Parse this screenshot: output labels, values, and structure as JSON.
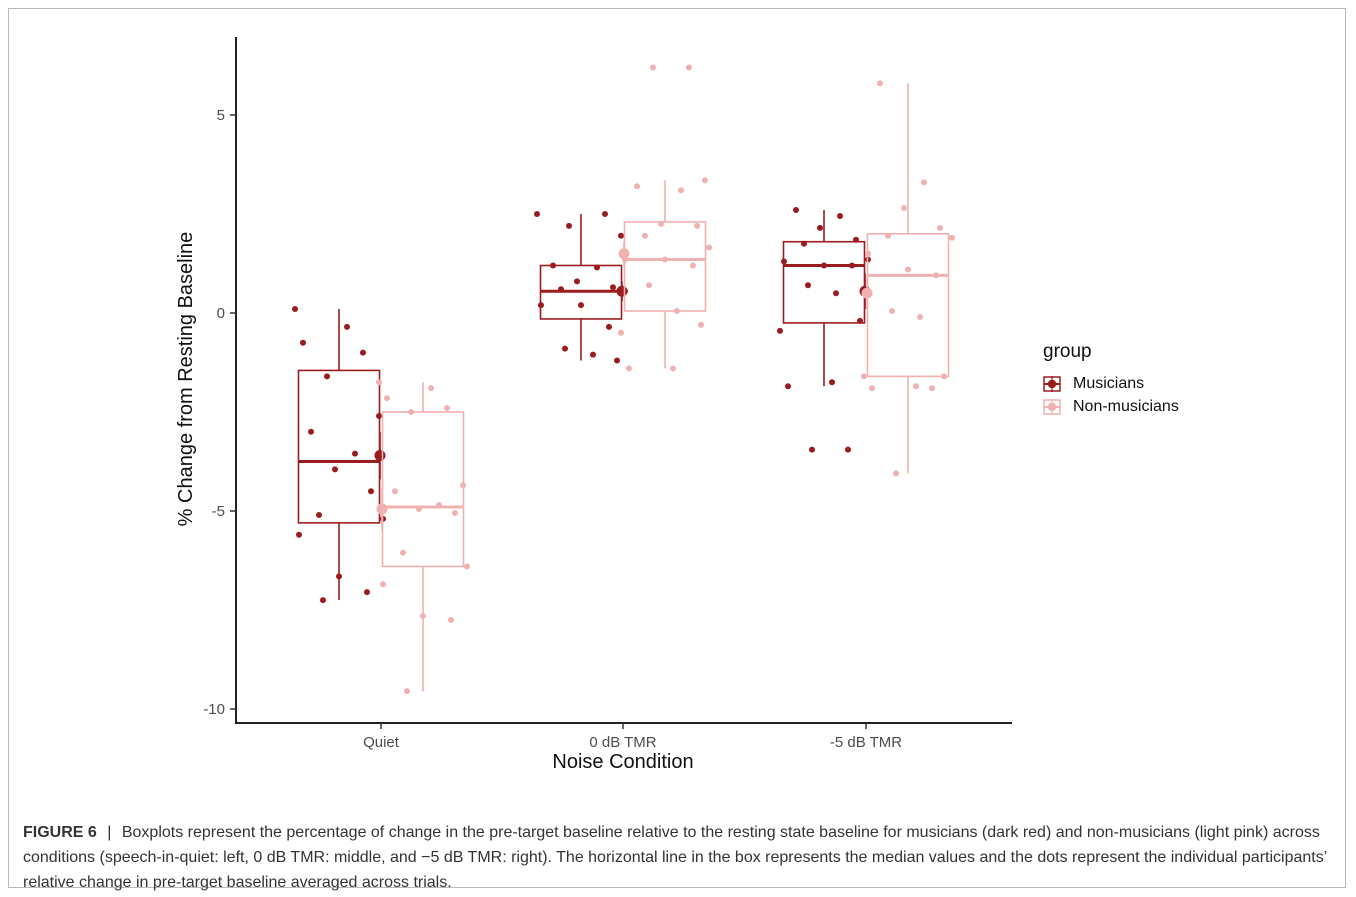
{
  "colors": {
    "musicians": "#9b1c1f",
    "non_musicians": "#f0b1b1"
  },
  "chart_data": {
    "type": "boxplot",
    "xlabel": "Noise Condition",
    "ylabel": "% Change from Resting Baseline",
    "categories": [
      "Quiet",
      "0 dB TMR",
      "-5 dB TMR"
    ],
    "yticks": [
      5,
      0,
      -5,
      -10
    ],
    "ytick_labels": [
      "5",
      "0",
      "-5",
      "-10"
    ],
    "ylim": [
      -10.3,
      7
    ],
    "grid": false,
    "legend_title": "group",
    "legend_position": "right",
    "series": [
      {
        "name": "Musicians",
        "color_key": "musicians",
        "boxes": [
          {
            "q1": -5.3,
            "median": -3.75,
            "q3": -1.45,
            "whisker_low": -7.25,
            "whisker_high": 0.1,
            "mean": -3.6,
            "mean_err": 0.6,
            "points": [
              0.1,
              -0.35,
              -0.75,
              -1.0,
              -1.6,
              -2.6,
              -3.0,
              -3.55,
              -3.95,
              -4.5,
              -5.1,
              -5.2,
              -5.6,
              -6.65,
              -7.05,
              -7.25
            ]
          },
          {
            "q1": -0.15,
            "median": 0.55,
            "q3": 1.2,
            "whisker_low": -1.2,
            "whisker_high": 2.5,
            "mean": 0.55,
            "mean_err": 0.25,
            "points": [
              2.5,
              2.2,
              1.95,
              1.2,
              1.15,
              0.8,
              0.65,
              0.6,
              0.55,
              0.2,
              0.2,
              -0.35,
              -0.9,
              -1.05,
              -1.2,
              2.5
            ]
          },
          {
            "q1": -0.25,
            "median": 1.2,
            "q3": 1.8,
            "whisker_low": -1.85,
            "whisker_high": 2.6,
            "mean": 0.55,
            "mean_err": 0.45,
            "points": [
              2.6,
              2.45,
              2.15,
              1.85,
              1.75,
              1.35,
              1.3,
              1.2,
              1.2,
              0.7,
              0.5,
              -0.2,
              -0.45,
              -1.75,
              -1.85,
              -3.45,
              -3.45
            ]
          }
        ]
      },
      {
        "name": "Non-musicians",
        "color_key": "non_musicians",
        "boxes": [
          {
            "q1": -6.4,
            "median": -4.9,
            "q3": -2.5,
            "whisker_low": -9.55,
            "whisker_high": -1.75,
            "mean": -4.95,
            "mean_err": 0.55,
            "points": [
              -1.75,
              -1.9,
              -2.15,
              -2.4,
              -2.5,
              -4.35,
              -4.5,
              -4.85,
              -4.95,
              -5.05,
              -6.05,
              -6.4,
              -6.85,
              -7.65,
              -7.75,
              -9.55
            ]
          },
          {
            "q1": 0.05,
            "median": 1.35,
            "q3": 2.3,
            "whisker_low": -1.4,
            "whisker_high": 3.35,
            "mean": 1.5,
            "mean_err": 0.3,
            "points": [
              6.2,
              6.2,
              3.35,
              3.2,
              3.1,
              2.25,
              2.2,
              1.95,
              1.65,
              1.35,
              1.35,
              1.2,
              0.7,
              0.05,
              -0.3,
              -0.5,
              -1.4,
              -1.4
            ]
          },
          {
            "q1": -1.6,
            "median": 0.95,
            "q3": 2.0,
            "whisker_low": -4.05,
            "whisker_high": 5.8,
            "mean": 0.5,
            "mean_err": 0.4,
            "points": [
              5.8,
              3.3,
              2.65,
              2.15,
              1.95,
              1.9,
              1.5,
              1.1,
              0.95,
              0.05,
              -0.1,
              -1.6,
              -1.6,
              -1.85,
              -1.9,
              -1.9,
              -4.05
            ]
          }
        ]
      }
    ]
  },
  "caption": {
    "label": "FIGURE 6",
    "separator": "|",
    "text": "Boxplots represent the percentage of change in the pre-target baseline relative to the resting state baseline for musicians (dark red) and non-musicians (light pink) across conditions (speech-in-quiet: left, 0 dB TMR: middle, and −5 dB TMR: right). The horizontal line in the box represents the median values and the dots represent the individual participants’ relative change in pre-target baseline averaged across trials."
  }
}
